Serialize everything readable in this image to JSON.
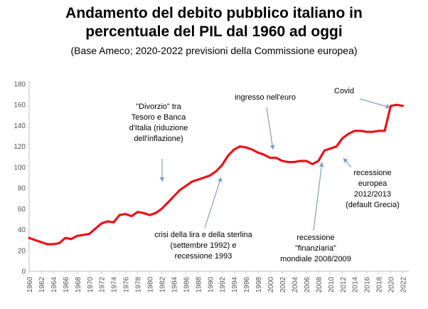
{
  "title_line1": "Andamento del debito pubblico italiano in",
  "title_line2": "percentuale del PIL dal 1960 ad oggi",
  "subtitle": "(Base Ameco; 2020-2022 previsioni della Commissione europea)",
  "chart_data": {
    "type": "line",
    "title": "Andamento del debito pubblico italiano in percentuale del PIL dal 1960 ad oggi",
    "subtitle": "(Base Ameco; 2020-2022 previsioni della Commissione europea)",
    "xlabel": "",
    "ylabel": "",
    "ylim": [
      0,
      180
    ],
    "yticks": [
      0,
      20,
      40,
      60,
      80,
      100,
      120,
      140,
      160,
      180
    ],
    "xticks": [
      "1960",
      "1962",
      "1964",
      "1966",
      "1968",
      "1970",
      "1972",
      "1974",
      "1976",
      "1978",
      "1980",
      "1982",
      "1984",
      "1986",
      "1988",
      "1990",
      "1992",
      "1994",
      "1996",
      "1998",
      "2000",
      "2002",
      "2004",
      "2006",
      "2008",
      "2010",
      "2012",
      "2014",
      "2016",
      "2018",
      "2020",
      "2022"
    ],
    "grid": false,
    "legend": "none",
    "line_color": "#e8121b",
    "series": [
      {
        "x": [
          1960,
          1961,
          1962,
          1963,
          1964,
          1965,
          1966,
          1967,
          1968,
          1969,
          1970,
          1971,
          1972,
          1973,
          1974,
          1975,
          1976,
          1977,
          1978,
          1979,
          1980,
          1981,
          1982,
          1983,
          1984,
          1985,
          1986,
          1987,
          1988,
          1989,
          1990,
          1991,
          1992,
          1993,
          1994,
          1995,
          1996,
          1997,
          1998,
          1999,
          2000,
          2001,
          2002,
          2003,
          2004,
          2005,
          2006,
          2007,
          2008,
          2009,
          2010,
          2011,
          2012,
          2013,
          2014,
          2015,
          2016,
          2017,
          2018,
          2019,
          2020,
          2021,
          2022
        ],
        "values": [
          32,
          30,
          28,
          26,
          26,
          27,
          32,
          31,
          34,
          35,
          36,
          41,
          46,
          48,
          47,
          54,
          55,
          53,
          57,
          56,
          54,
          56,
          60,
          66,
          72,
          78,
          82,
          86,
          88,
          90,
          92,
          96,
          102,
          111,
          117,
          120,
          119,
          117,
          114,
          112,
          109,
          109,
          106,
          105,
          105,
          106,
          106,
          103,
          106,
          116,
          118,
          120,
          128,
          132,
          135,
          135,
          134,
          134,
          135,
          135,
          159,
          160,
          159
        ]
      }
    ],
    "annotations": [
      {
        "lines": [
          "\"Divorzio\" tra",
          "Tesoro e Banca",
          "d'Italia (riduzione",
          "dell'inflazione)"
        ]
      },
      {
        "lines": [
          "ingresso nell'euro"
        ]
      },
      {
        "lines": [
          "Covid"
        ]
      },
      {
        "lines": [
          "crisi della lira e della sterlina",
          "(settembre 1992) e",
          "recessione 1993"
        ]
      },
      {
        "lines": [
          "recessione",
          "\"finanziaria\"",
          "mondiale  2008/2009"
        ]
      },
      {
        "lines": [
          "recessione",
          "europea",
          "2012/2013",
          "(default Grecia)"
        ]
      }
    ]
  }
}
